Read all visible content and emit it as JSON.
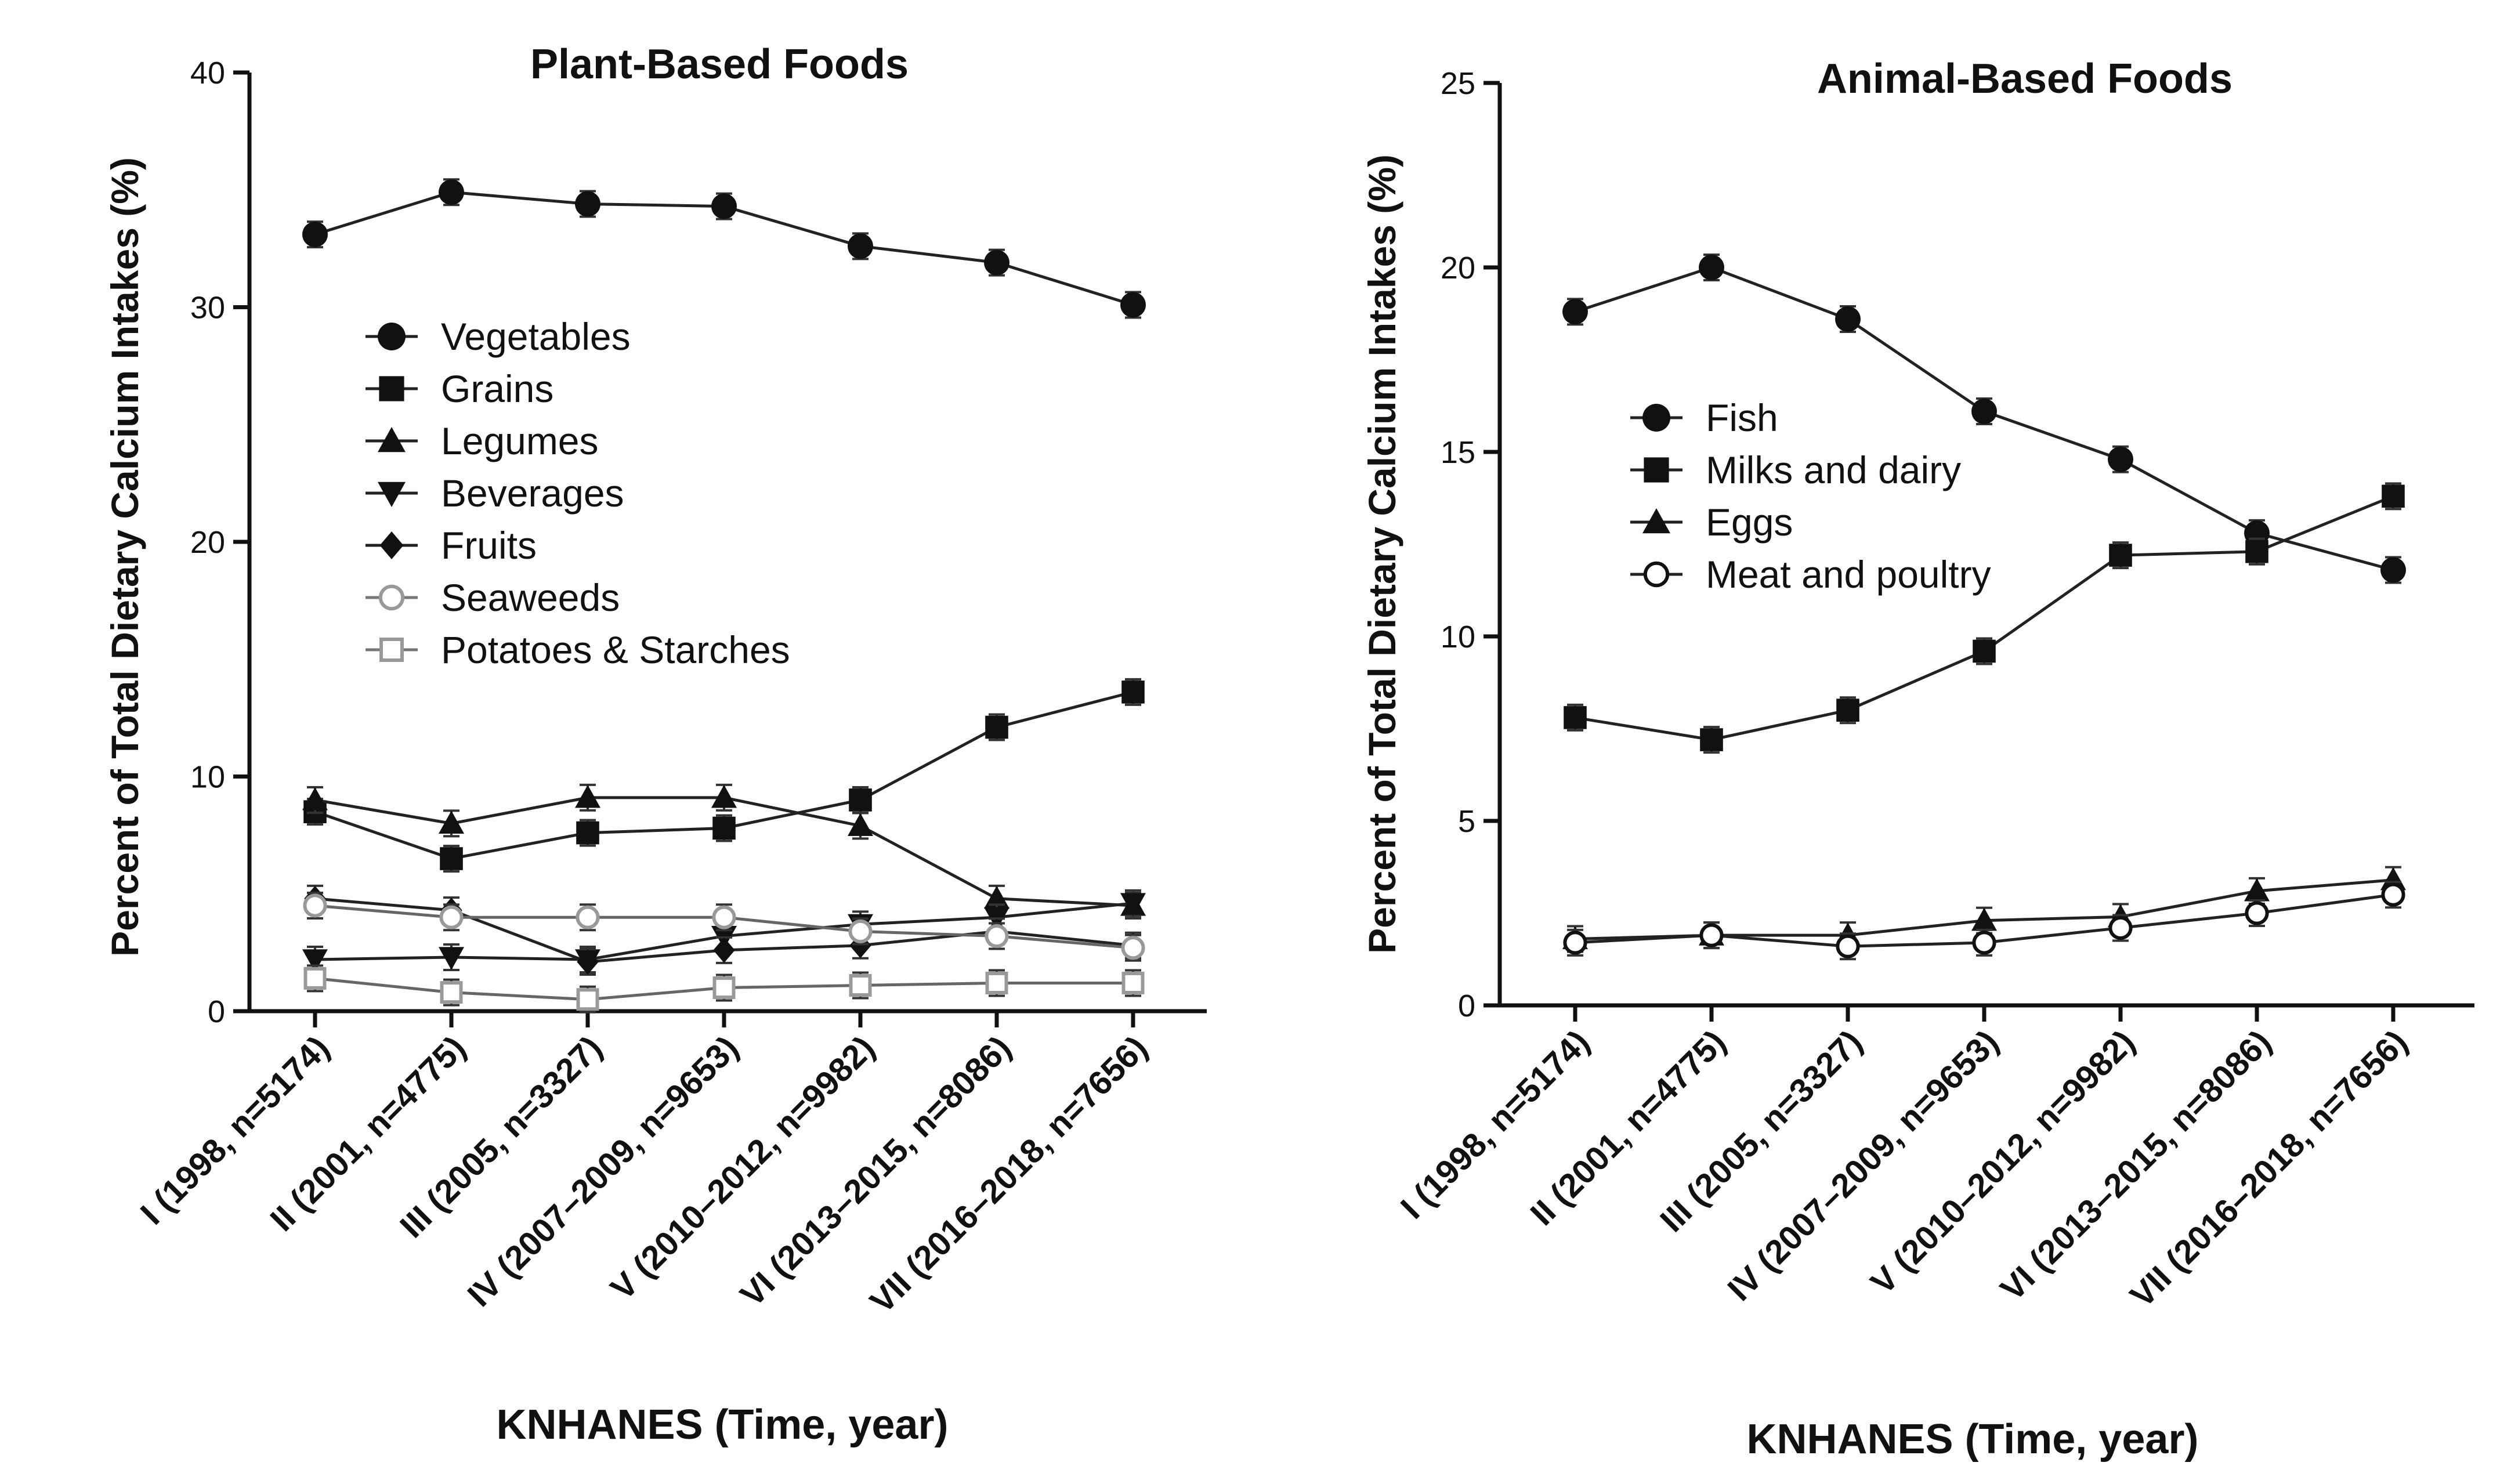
{
  "chart_data": [
    {
      "type": "line",
      "title": "Plant-Based Foods",
      "xlabel": "KNHANES (Time, year)",
      "ylabel": "Percent of Total Dietary Calcium Intakes  (%)",
      "ylim": [
        0,
        40
      ],
      "yticks": [
        0,
        10,
        20,
        30,
        40
      ],
      "categories": [
        "I (1998, n=5174)",
        "II (2001, n=4775)",
        "III (2005, n=3327)",
        "IV (2007–2009, n=9653)",
        "V (2010–2012, n=9982)",
        "VI (2013–2015, n=8086)",
        "VII (2016–2018, n=7656)"
      ],
      "legend_position": "upper-left",
      "series": [
        {
          "name": "Vegetables",
          "marker": "circle-filled",
          "values": [
            33.1,
            34.9,
            34.4,
            34.3,
            32.6,
            31.9,
            30.1
          ]
        },
        {
          "name": "Grains",
          "marker": "square-filled",
          "values": [
            8.5,
            6.5,
            7.6,
            7.8,
            9.0,
            12.1,
            13.6
          ]
        },
        {
          "name": "Legumes",
          "marker": "triangle-up-filled",
          "values": [
            9.0,
            8.0,
            9.1,
            9.1,
            7.9,
            4.8,
            4.5
          ]
        },
        {
          "name": "Beverages",
          "marker": "triangle-down-filled",
          "values": [
            2.2,
            2.3,
            2.2,
            3.2,
            3.7,
            4.0,
            4.6
          ]
        },
        {
          "name": "Fruits",
          "marker": "diamond-filled",
          "values": [
            4.8,
            4.3,
            2.1,
            2.6,
            2.8,
            3.4,
            2.8
          ]
        },
        {
          "name": "Seaweeds",
          "marker": "circle-open-gray",
          "values": [
            4.5,
            4.0,
            4.0,
            4.0,
            3.4,
            3.2,
            2.7
          ]
        },
        {
          "name": "Potatoes & Starches",
          "marker": "square-open-gray",
          "values": [
            1.4,
            0.8,
            0.5,
            1.0,
            1.1,
            1.2,
            1.2
          ]
        }
      ]
    },
    {
      "type": "line",
      "title": "Animal-Based  Foods",
      "xlabel": "KNHANES (Time, year)",
      "ylabel": "Percent of Total Dietary Calcium Intakes  (%)",
      "ylim": [
        0,
        25
      ],
      "yticks": [
        0,
        5,
        10,
        15,
        20,
        25
      ],
      "categories": [
        "I (1998, n=5174)",
        "II (2001, n=4775)",
        "III (2005, n=3327)",
        "IV (2007–2009, n=9653)",
        "V (2010–2012, n=9982)",
        "VI (2013–2015, n=8086)",
        "VII (2016–2018, n=7656)"
      ],
      "legend_position": "center-left",
      "series": [
        {
          "name": "Fish",
          "marker": "circle-filled",
          "values": [
            18.8,
            20.0,
            18.6,
            16.1,
            14.8,
            12.8,
            11.8
          ]
        },
        {
          "name": "Milks and dairy",
          "marker": "square-filled",
          "values": [
            7.8,
            7.2,
            8.0,
            9.6,
            12.2,
            12.3,
            13.8
          ]
        },
        {
          "name": "Eggs",
          "marker": "triangle-up-filled",
          "values": [
            1.8,
            1.9,
            1.9,
            2.3,
            2.4,
            3.1,
            3.4
          ]
        },
        {
          "name": "Meat and poultry",
          "marker": "circle-open",
          "values": [
            1.7,
            1.9,
            1.6,
            1.7,
            2.1,
            2.5,
            3.0
          ]
        }
      ]
    }
  ]
}
